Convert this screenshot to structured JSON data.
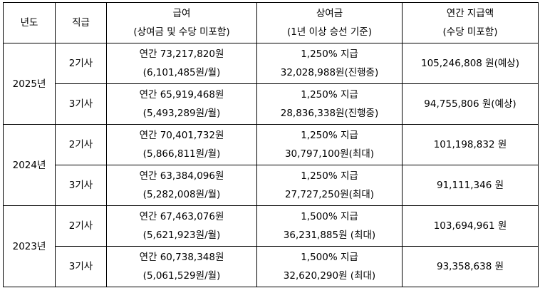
{
  "header": {
    "year": "년도",
    "rank": "직급",
    "pay": {
      "title": "급여",
      "note": "(상여금 및 수당 미포함)"
    },
    "bonus": {
      "title": "상여금",
      "note": "(1년 이상 승선 기준)"
    },
    "total": {
      "title": "연간 지급액",
      "note": "(수당 미포함)"
    }
  },
  "groups": [
    {
      "year": "2025년",
      "rows": [
        {
          "rank": "2기사",
          "pay_annual": "연간 73,217,820원",
          "pay_monthly": "(6,101,485원/월)",
          "bonus_rate": "1,250% 지급",
          "bonus_amount": "32,028,988원(진행중)",
          "total": "105,246,808 원(예상)"
        },
        {
          "rank": "3기사",
          "pay_annual": "연간 65,919,468원",
          "pay_monthly": "(5,493,289원/월)",
          "bonus_rate": "1,250% 지급",
          "bonus_amount": "28,836,338원(진행중)",
          "total": "94,755,806 원(예상)"
        }
      ]
    },
    {
      "year": "2024년",
      "rows": [
        {
          "rank": "2기사",
          "pay_annual": "연간 70,401,732원",
          "pay_monthly": "(5,866,811원/월)",
          "bonus_rate": "1,250% 지급",
          "bonus_amount": "30,797,100원(최대)",
          "total": "101,198,832 원"
        },
        {
          "rank": "3기사",
          "pay_annual": "연간 63,384,096원",
          "pay_monthly": "(5,282,008원/월)",
          "bonus_rate": "1,250% 지급",
          "bonus_amount": "27,727,250원(최대)",
          "total": "91,111,346 원"
        }
      ]
    },
    {
      "year": "2023년",
      "rows": [
        {
          "rank": "2기사",
          "pay_annual": "연간 67,463,076원",
          "pay_monthly": "(5,621,923원/월)",
          "bonus_rate": "1,500% 지급",
          "bonus_amount": "36,231,885원 (최대)",
          "total": "103,694,961 원"
        },
        {
          "rank": "3기사",
          "pay_annual": "연간 60,738,348원",
          "pay_monthly": "(5,061,529원/월)",
          "bonus_rate": "1,500% 지급",
          "bonus_amount": "32,620,290원 (최대)",
          "total": "93,358,638 원"
        }
      ]
    }
  ]
}
